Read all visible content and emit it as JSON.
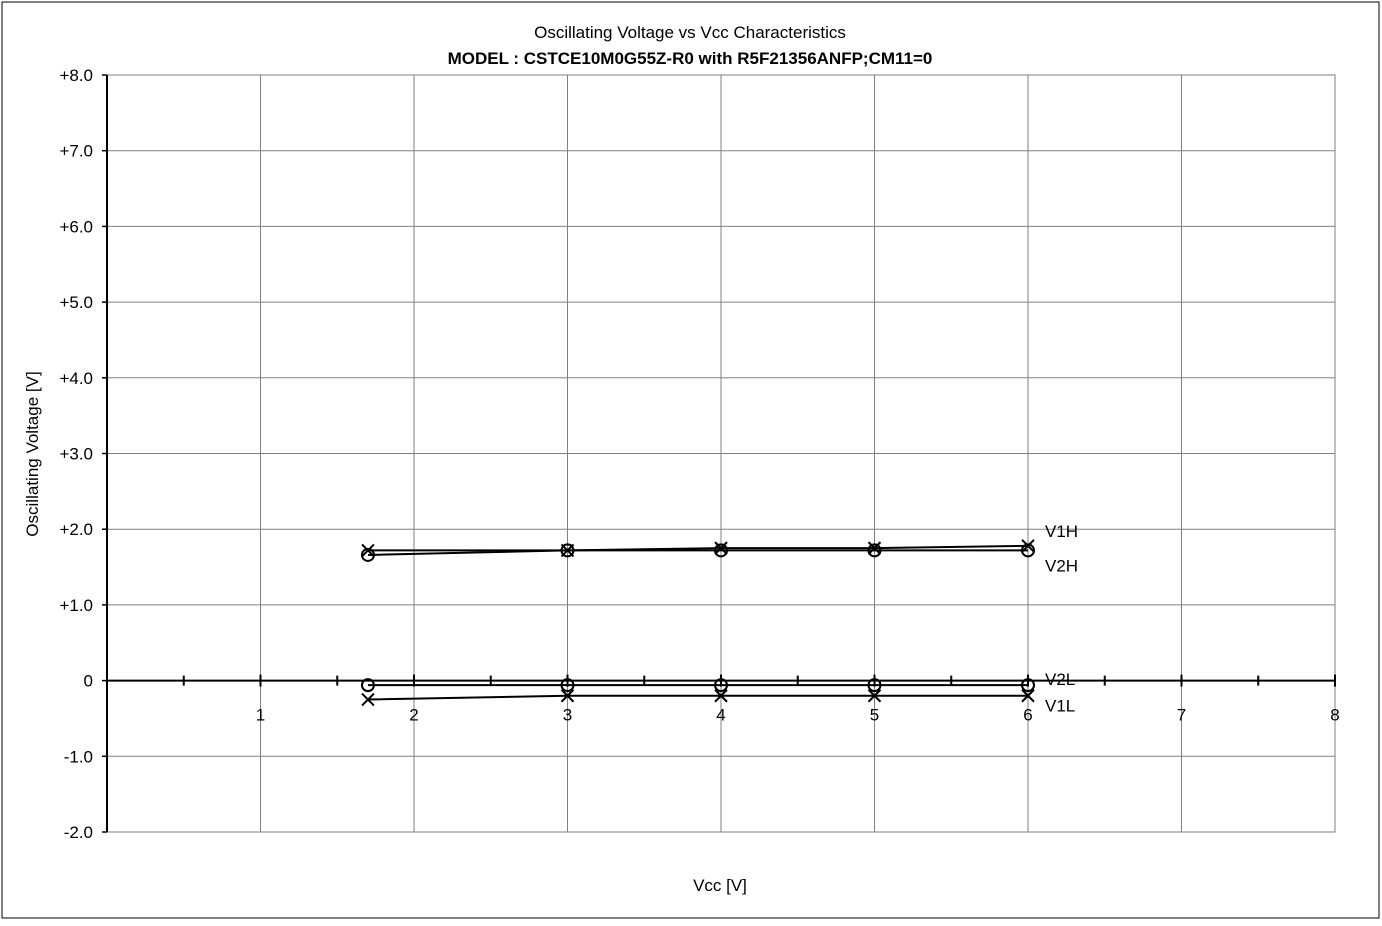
{
  "chart_data": {
    "type": "line",
    "title": "Oscillating Voltage vs Vcc Characteristics",
    "subtitle": "MODEL : CSTCE10M0G55Z-R0 with R5F21356ANFP;CM11=0",
    "xlabel": "Vcc [V]",
    "ylabel": "Oscillating Voltage [V]",
    "xlim": [
      0,
      8
    ],
    "ylim": [
      -2.0,
      8.0
    ],
    "grid": true,
    "x_ticks": [
      {
        "value": 1,
        "label": "1"
      },
      {
        "value": 2,
        "label": "2"
      },
      {
        "value": 3,
        "label": "3"
      },
      {
        "value": 4,
        "label": "4"
      },
      {
        "value": 5,
        "label": "5"
      },
      {
        "value": 6,
        "label": "6"
      },
      {
        "value": 7,
        "label": "7"
      },
      {
        "value": 8,
        "label": "8"
      }
    ],
    "y_ticks": [
      {
        "value": 8,
        "label": "+8.0"
      },
      {
        "value": 7,
        "label": "+7.0"
      },
      {
        "value": 6,
        "label": "+6.0"
      },
      {
        "value": 5,
        "label": "+5.0"
      },
      {
        "value": 4,
        "label": "+4.0"
      },
      {
        "value": 3,
        "label": "+3.0"
      },
      {
        "value": 2,
        "label": "+2.0"
      },
      {
        "value": 1,
        "label": "+1.0"
      },
      {
        "value": 0,
        "label": "0"
      },
      {
        "value": -1,
        "label": "-1.0"
      },
      {
        "value": -2,
        "label": "-2.0"
      }
    ],
    "x": [
      1.7,
      3,
      4,
      5,
      6
    ],
    "series": [
      {
        "name": "V1H",
        "marker": "x",
        "values": [
          1.72,
          1.72,
          1.75,
          1.75,
          1.78
        ]
      },
      {
        "name": "V2H",
        "marker": "o",
        "values": [
          1.66,
          1.72,
          1.72,
          1.72,
          1.72
        ]
      },
      {
        "name": "V2L",
        "marker": "o",
        "values": [
          -0.06,
          -0.06,
          -0.06,
          -0.06,
          -0.06
        ]
      },
      {
        "name": "V1L",
        "marker": "x",
        "values": [
          -0.25,
          -0.2,
          -0.2,
          -0.2,
          -0.2
        ]
      }
    ],
    "line_color": "#000000"
  }
}
